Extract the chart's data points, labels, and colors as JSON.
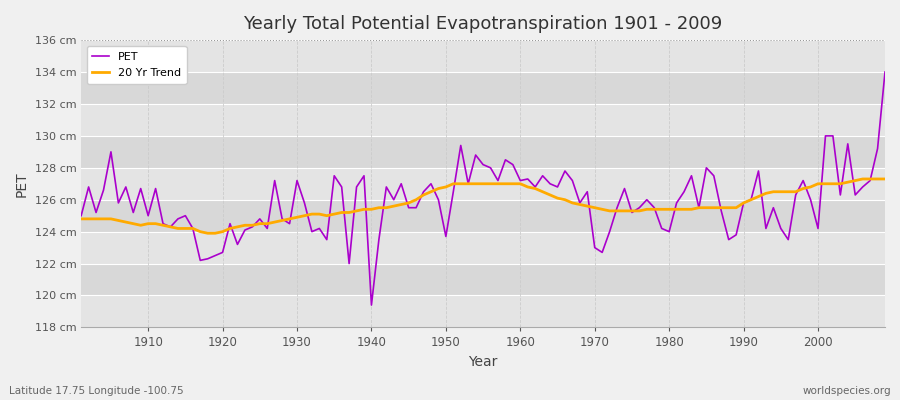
{
  "title": "Yearly Total Potential Evapotranspiration 1901 - 2009",
  "xlabel": "Year",
  "ylabel": "PET",
  "footnote_left": "Latitude 17.75 Longitude -100.75",
  "footnote_right": "worldspecies.org",
  "ylim": [
    118,
    136
  ],
  "xlim": [
    1901,
    2009
  ],
  "yticks": [
    118,
    120,
    122,
    124,
    126,
    128,
    130,
    132,
    134,
    136
  ],
  "xticks": [
    1910,
    1920,
    1930,
    1940,
    1950,
    1960,
    1970,
    1980,
    1990,
    2000
  ],
  "pet_color": "#aa00cc",
  "trend_color": "#ffaa00",
  "background_color": "#f0f0f0",
  "plot_bg_color": "#eaeaea",
  "band_color_1": "#e8e8e8",
  "band_color_2": "#d8d8d8",
  "grid_color": "#ffffff",
  "vgrid_color": "#cccccc",
  "pet_data": {
    "1901": 125.0,
    "1902": 126.8,
    "1903": 125.2,
    "1904": 126.6,
    "1905": 129.0,
    "1906": 125.8,
    "1907": 126.8,
    "1908": 125.2,
    "1909": 126.7,
    "1910": 125.0,
    "1911": 126.7,
    "1912": 124.5,
    "1913": 124.3,
    "1914": 124.8,
    "1915": 125.0,
    "1916": 124.2,
    "1917": 122.2,
    "1918": 122.3,
    "1919": 122.5,
    "1920": 122.7,
    "1921": 124.5,
    "1922": 123.2,
    "1923": 124.1,
    "1924": 124.3,
    "1925": 124.8,
    "1926": 124.2,
    "1927": 127.2,
    "1928": 124.8,
    "1929": 124.5,
    "1930": 127.2,
    "1931": 125.8,
    "1932": 124.0,
    "1933": 124.2,
    "1934": 123.5,
    "1935": 127.5,
    "1936": 126.8,
    "1937": 122.0,
    "1938": 126.8,
    "1939": 127.5,
    "1940": 119.4,
    "1941": 123.5,
    "1942": 126.8,
    "1943": 126.0,
    "1944": 127.0,
    "1945": 125.5,
    "1946": 125.5,
    "1947": 126.5,
    "1948": 127.0,
    "1949": 126.0,
    "1950": 123.7,
    "1951": 126.5,
    "1952": 129.4,
    "1953": 127.0,
    "1954": 128.8,
    "1955": 128.2,
    "1956": 128.0,
    "1957": 127.2,
    "1958": 128.5,
    "1959": 128.2,
    "1960": 127.2,
    "1961": 127.3,
    "1962": 126.8,
    "1963": 127.5,
    "1964": 127.0,
    "1965": 126.8,
    "1966": 127.8,
    "1967": 127.2,
    "1968": 125.8,
    "1969": 126.5,
    "1970": 123.0,
    "1971": 122.7,
    "1972": 124.0,
    "1973": 125.5,
    "1974": 126.7,
    "1975": 125.2,
    "1976": 125.5,
    "1977": 126.0,
    "1978": 125.5,
    "1979": 124.2,
    "1980": 124.0,
    "1981": 125.8,
    "1982": 126.5,
    "1983": 127.5,
    "1984": 125.5,
    "1985": 128.0,
    "1986": 127.5,
    "1987": 125.3,
    "1988": 123.5,
    "1989": 123.8,
    "1990": 125.8,
    "1991": 126.0,
    "1992": 127.8,
    "1993": 124.2,
    "1994": 125.5,
    "1995": 124.2,
    "1996": 123.5,
    "1997": 126.3,
    "1998": 127.2,
    "1999": 126.0,
    "2000": 124.2,
    "2001": 130.0,
    "2002": 130.0,
    "2003": 126.3,
    "2004": 129.5,
    "2005": 126.3,
    "2006": 126.8,
    "2007": 127.2,
    "2008": 129.2,
    "2009": 134.0
  },
  "trend_data": {
    "1901": 124.8,
    "1902": 124.8,
    "1903": 124.8,
    "1904": 124.8,
    "1905": 124.8,
    "1906": 124.7,
    "1907": 124.6,
    "1908": 124.5,
    "1909": 124.4,
    "1910": 124.5,
    "1911": 124.5,
    "1912": 124.4,
    "1913": 124.3,
    "1914": 124.2,
    "1915": 124.2,
    "1916": 124.2,
    "1917": 124.0,
    "1918": 123.9,
    "1919": 123.9,
    "1920": 124.0,
    "1921": 124.2,
    "1922": 124.3,
    "1923": 124.4,
    "1924": 124.4,
    "1925": 124.5,
    "1926": 124.5,
    "1927": 124.6,
    "1928": 124.7,
    "1929": 124.8,
    "1930": 124.9,
    "1931": 125.0,
    "1932": 125.1,
    "1933": 125.1,
    "1934": 125.0,
    "1935": 125.1,
    "1936": 125.2,
    "1937": 125.2,
    "1938": 125.3,
    "1939": 125.4,
    "1940": 125.4,
    "1941": 125.5,
    "1942": 125.5,
    "1943": 125.6,
    "1944": 125.7,
    "1945": 125.8,
    "1946": 126.0,
    "1947": 126.3,
    "1948": 126.5,
    "1949": 126.7,
    "1950": 126.8,
    "1951": 127.0,
    "1952": 127.0,
    "1953": 127.0,
    "1954": 127.0,
    "1955": 127.0,
    "1956": 127.0,
    "1957": 127.0,
    "1958": 127.0,
    "1959": 127.0,
    "1960": 127.0,
    "1961": 126.8,
    "1962": 126.7,
    "1963": 126.5,
    "1964": 126.3,
    "1965": 126.1,
    "1966": 126.0,
    "1967": 125.8,
    "1968": 125.7,
    "1969": 125.6,
    "1970": 125.5,
    "1971": 125.4,
    "1972": 125.3,
    "1973": 125.3,
    "1974": 125.3,
    "1975": 125.3,
    "1976": 125.3,
    "1977": 125.4,
    "1978": 125.4,
    "1979": 125.4,
    "1980": 125.4,
    "1981": 125.4,
    "1982": 125.4,
    "1983": 125.4,
    "1984": 125.5,
    "1985": 125.5,
    "1986": 125.5,
    "1987": 125.5,
    "1988": 125.5,
    "1989": 125.5,
    "1990": 125.8,
    "1991": 126.0,
    "1992": 126.2,
    "1993": 126.4,
    "1994": 126.5,
    "1995": 126.5,
    "1996": 126.5,
    "1997": 126.5,
    "1998": 126.7,
    "1999": 126.8,
    "2000": 127.0,
    "2001": 127.0,
    "2002": 127.0,
    "2003": 127.0,
    "2004": 127.1,
    "2005": 127.2,
    "2006": 127.3,
    "2007": 127.3,
    "2008": 127.3,
    "2009": 127.3
  }
}
